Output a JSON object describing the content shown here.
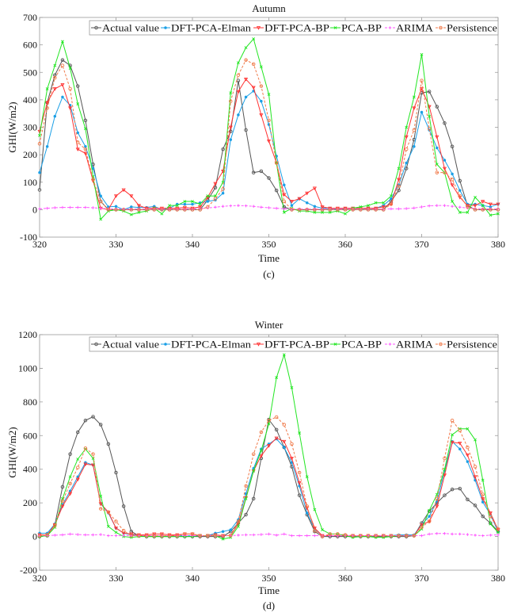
{
  "chart_data": [
    {
      "type": "line",
      "title": "Autumn",
      "xlabel": "Time",
      "ylabel": "GHI(W/m2)",
      "caption": "(c)",
      "xlim": [
        320,
        380
      ],
      "ylim": [
        -100,
        700
      ],
      "xticks": [
        320,
        330,
        340,
        350,
        360,
        370,
        380
      ],
      "xtick_labels": [
        "320",
        "330",
        "340",
        "350",
        "360",
        "370",
        "380"
      ],
      "yticks": [
        -100,
        0,
        100,
        200,
        300,
        400,
        500,
        600,
        700
      ],
      "ytick_labels": [
        "-100",
        "0",
        "100",
        "200",
        "300",
        "400",
        "500",
        "600",
        "700"
      ],
      "legend_position": "top-right",
      "x_start": 320,
      "series": [
        {
          "name": "Actual value",
          "color": "#555555",
          "marker": "circle",
          "dash": false,
          "values": [
            72,
            390,
            490,
            545,
            525,
            450,
            325,
            165,
            30,
            0,
            0,
            0,
            0,
            0,
            0,
            0,
            0,
            0,
            0,
            0,
            0,
            0,
            35,
            80,
            220,
            285,
            470,
            290,
            135,
            140,
            115,
            70,
            10,
            0,
            0,
            0,
            0,
            0,
            0,
            0,
            0,
            0,
            0,
            0,
            0,
            0,
            30,
            70,
            150,
            255,
            425,
            430,
            375,
            315,
            230,
            105,
            15,
            0,
            0,
            0,
            0
          ]
        },
        {
          "name": "DFT-PCA-Elman",
          "color": "#1a9fe6",
          "marker": "dot",
          "dash": false,
          "values": [
            135,
            230,
            340,
            410,
            380,
            280,
            230,
            150,
            50,
            10,
            12,
            0,
            10,
            8,
            8,
            12,
            0,
            5,
            20,
            20,
            20,
            25,
            30,
            35,
            60,
            255,
            345,
            410,
            432,
            395,
            310,
            195,
            90,
            15,
            40,
            25,
            12,
            5,
            5,
            0,
            5,
            5,
            5,
            5,
            5,
            15,
            40,
            90,
            170,
            230,
            355,
            290,
            225,
            180,
            130,
            70,
            20,
            20,
            15,
            10,
            20
          ]
        },
        {
          "name": "DFT-PCA-BP",
          "color": "#ff3333",
          "marker": "triangle",
          "dash": false,
          "values": [
            285,
            390,
            440,
            455,
            370,
            220,
            205,
            105,
            5,
            0,
            50,
            72,
            50,
            15,
            5,
            5,
            5,
            5,
            5,
            8,
            5,
            10,
            45,
            95,
            140,
            300,
            430,
            475,
            445,
            345,
            250,
            170,
            55,
            30,
            40,
            60,
            78,
            10,
            5,
            5,
            5,
            5,
            5,
            5,
            5,
            10,
            20,
            110,
            265,
            370,
            440,
            375,
            265,
            150,
            90,
            45,
            15,
            15,
            30,
            20,
            20
          ]
        },
        {
          "name": "PCA-BP",
          "color": "#22e622",
          "marker": "x",
          "dash": false,
          "values": [
            270,
            440,
            525,
            612,
            515,
            385,
            295,
            120,
            -35,
            -5,
            0,
            -5,
            -18,
            -10,
            -5,
            5,
            -15,
            15,
            15,
            30,
            30,
            20,
            50,
            50,
            100,
            425,
            535,
            590,
            622,
            520,
            420,
            170,
            -10,
            5,
            -5,
            -5,
            -10,
            -10,
            -10,
            -5,
            -15,
            5,
            10,
            15,
            25,
            25,
            50,
            150,
            300,
            410,
            565,
            340,
            165,
            135,
            30,
            -10,
            -10,
            45,
            15,
            -20,
            -15
          ]
        },
        {
          "name": "ARIMA",
          "color": "#ff55ff",
          "marker": "plus",
          "dash": true,
          "values": [
            3,
            5,
            7,
            8,
            8,
            8,
            8,
            7,
            5,
            3,
            2,
            2,
            2,
            2,
            2,
            2,
            2,
            2,
            2,
            2,
            3,
            4,
            6,
            9,
            12,
            14,
            15,
            14,
            12,
            9,
            7,
            5,
            3,
            2,
            2,
            2,
            2,
            2,
            2,
            2,
            2,
            2,
            2,
            2,
            2,
            2,
            3,
            3,
            4,
            6,
            10,
            14,
            15,
            15,
            12,
            9,
            6,
            4,
            3,
            3,
            3
          ]
        },
        {
          "name": "Persistence",
          "color": "#f07a4a",
          "marker": "circle",
          "dash": true,
          "values": [
            240,
            370,
            480,
            525,
            440,
            245,
            220,
            110,
            30,
            0,
            0,
            0,
            0,
            0,
            0,
            0,
            0,
            0,
            0,
            0,
            0,
            0,
            10,
            40,
            75,
            395,
            490,
            545,
            530,
            450,
            325,
            170,
            30,
            0,
            0,
            0,
            0,
            0,
            0,
            0,
            0,
            0,
            0,
            0,
            0,
            0,
            20,
            85,
            220,
            290,
            470,
            295,
            135,
            135,
            110,
            50,
            10,
            0,
            0,
            0,
            0
          ]
        }
      ]
    },
    {
      "type": "line",
      "title": "Winter",
      "xlabel": "Time",
      "ylabel": "GHI(W/m2)",
      "caption": "(d)",
      "xlim": [
        320,
        380
      ],
      "ylim": [
        -200,
        1200
      ],
      "xticks": [
        320,
        330,
        340,
        350,
        360,
        370,
        380
      ],
      "xtick_labels": [
        "320",
        "330",
        "340",
        "350",
        "360",
        "370",
        "380"
      ],
      "yticks": [
        -200,
        0,
        200,
        400,
        600,
        800,
        1000,
        1200
      ],
      "ytick_labels": [
        "-200",
        "0",
        "200",
        "400",
        "600",
        "800",
        "1000",
        "1200"
      ],
      "legend_position": "top-right",
      "x_start": 320,
      "series": [
        {
          "name": "Actual value",
          "color": "#555555",
          "marker": "circle",
          "dash": false,
          "values": [
            0,
            5,
            70,
            295,
            490,
            620,
            690,
            712,
            665,
            550,
            380,
            180,
            30,
            5,
            0,
            0,
            0,
            0,
            0,
            0,
            0,
            0,
            0,
            0,
            0,
            30,
            80,
            130,
            225,
            465,
            695,
            635,
            530,
            415,
            245,
            130,
            30,
            0,
            0,
            0,
            0,
            0,
            0,
            0,
            0,
            0,
            0,
            0,
            0,
            5,
            80,
            150,
            200,
            245,
            280,
            285,
            220,
            185,
            120,
            80,
            30
          ]
        },
        {
          "name": "DFT-PCA-Elman",
          "color": "#1a9fe6",
          "marker": "dot",
          "dash": false,
          "values": [
            20,
            20,
            75,
            190,
            270,
            355,
            440,
            425,
            195,
            140,
            50,
            20,
            10,
            5,
            5,
            5,
            5,
            5,
            5,
            5,
            5,
            5,
            5,
            20,
            30,
            40,
            100,
            255,
            405,
            520,
            550,
            580,
            530,
            440,
            300,
            140,
            45,
            5,
            5,
            5,
            5,
            5,
            5,
            5,
            5,
            5,
            5,
            10,
            10,
            10,
            70,
            120,
            210,
            390,
            565,
            520,
            445,
            335,
            205,
            130,
            30
          ]
        },
        {
          "name": "DFT-PCA-BP",
          "color": "#ff3333",
          "marker": "triangle",
          "dash": false,
          "values": [
            10,
            10,
            70,
            180,
            255,
            340,
            430,
            425,
            195,
            145,
            50,
            20,
            15,
            10,
            10,
            15,
            15,
            10,
            10,
            15,
            15,
            5,
            5,
            10,
            5,
            5,
            75,
            230,
            390,
            480,
            540,
            585,
            565,
            465,
            320,
            170,
            50,
            5,
            5,
            5,
            5,
            5,
            5,
            5,
            5,
            5,
            5,
            5,
            5,
            5,
            70,
            90,
            180,
            365,
            560,
            555,
            485,
            355,
            225,
            140,
            40
          ]
        },
        {
          "name": "PCA-BP",
          "color": "#22e622",
          "marker": "x",
          "dash": false,
          "values": [
            0,
            5,
            55,
            225,
            355,
            460,
            520,
            465,
            240,
            60,
            25,
            0,
            -5,
            0,
            0,
            0,
            0,
            0,
            0,
            0,
            0,
            5,
            5,
            5,
            -15,
            -5,
            60,
            225,
            390,
            510,
            670,
            945,
            1080,
            885,
            615,
            355,
            160,
            40,
            15,
            15,
            5,
            -5,
            0,
            0,
            -5,
            -5,
            0,
            5,
            5,
            5,
            45,
            155,
            250,
            400,
            605,
            640,
            640,
            575,
            335,
            75,
            25
          ]
        },
        {
          "name": "ARIMA",
          "color": "#ff55ff",
          "marker": "plus",
          "dash": true,
          "values": [
            5,
            5,
            8,
            10,
            15,
            12,
            10,
            10,
            12,
            5,
            5,
            5,
            5,
            5,
            5,
            5,
            5,
            5,
            5,
            5,
            5,
            5,
            5,
            5,
            5,
            5,
            8,
            10,
            10,
            12,
            15,
            8,
            15,
            5,
            5,
            5,
            5,
            5,
            5,
            5,
            5,
            5,
            5,
            5,
            5,
            5,
            5,
            5,
            5,
            5,
            5,
            15,
            18,
            18,
            15,
            15,
            12,
            8,
            5,
            8,
            10
          ]
        },
        {
          "name": "Persistence",
          "color": "#f07a4a",
          "marker": "circle",
          "dash": true,
          "values": [
            5,
            10,
            65,
            210,
            315,
            410,
            525,
            490,
            165,
            145,
            90,
            35,
            5,
            5,
            5,
            5,
            5,
            5,
            5,
            15,
            15,
            5,
            5,
            5,
            5,
            5,
            90,
            300,
            490,
            620,
            690,
            710,
            665,
            550,
            380,
            180,
            35,
            0,
            15,
            15,
            10,
            5,
            5,
            5,
            5,
            5,
            5,
            5,
            5,
            5,
            55,
            90,
            225,
            465,
            690,
            630,
            530,
            415,
            250,
            120,
            45
          ]
        }
      ]
    }
  ]
}
